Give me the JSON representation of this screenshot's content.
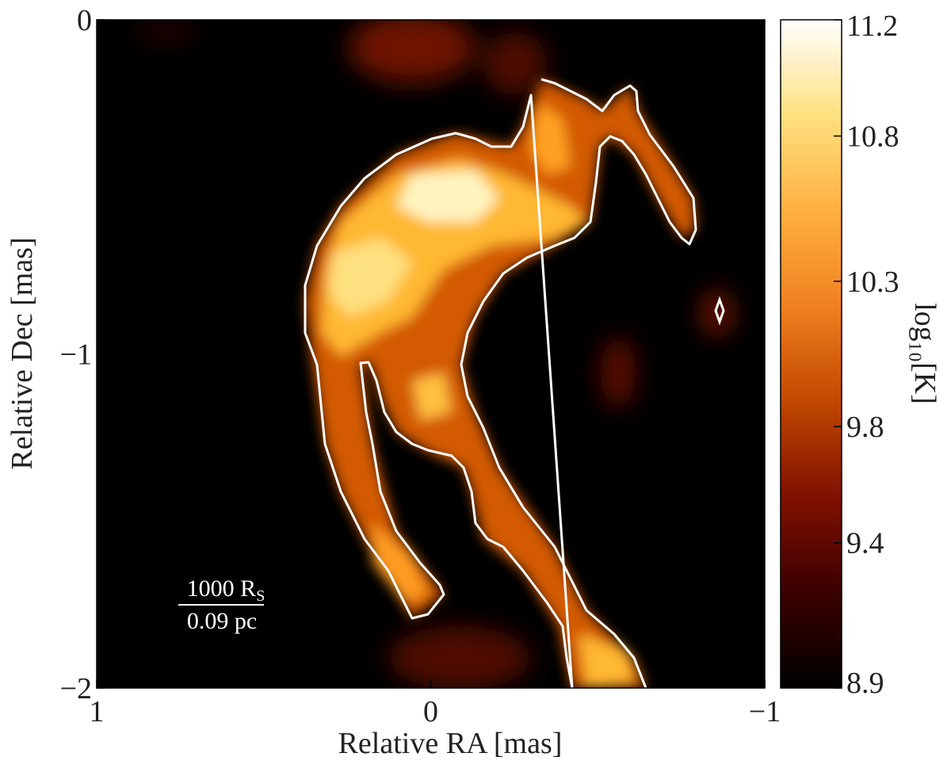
{
  "chart_data": {
    "type": "heatmap",
    "xlabel": "Relative RA [mas]",
    "ylabel": "Relative Dec [mas]",
    "xlim": [
      1,
      -1
    ],
    "xticks": [
      1,
      0,
      {
        "value": -1,
        "label": "−1"
      }
    ],
    "ylim": [
      -2,
      0
    ],
    "yticks": [
      0,
      {
        "value": -1,
        "label": "−1"
      },
      {
        "value": -2,
        "label": "−2"
      }
    ],
    "colormap": "afmhot",
    "colorbar": {
      "label": "log₁₀[K]",
      "lim": [
        8.9,
        11.2
      ],
      "ticks": [
        8.9,
        9.4,
        9.8,
        10.3,
        10.8,
        11.2
      ]
    },
    "scale_bar": {
      "top": "1000 R",
      "top_subscript": "S",
      "bottom": "0.09 pc"
    }
  }
}
